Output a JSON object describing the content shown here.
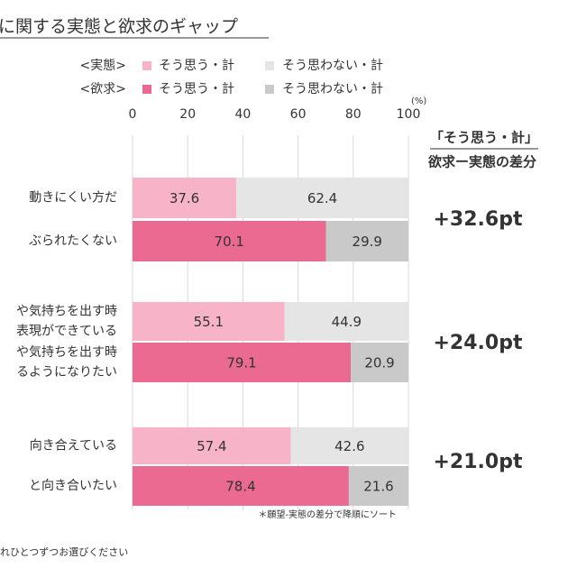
{
  "chart_data": {
    "type": "bar",
    "stacked": true,
    "orientation": "horizontal",
    "title": "に関する実態と欲求のギャップ",
    "unit_label": "(%)",
    "xlim": [
      0,
      100
    ],
    "xticks": [
      0,
      20,
      40,
      60,
      80,
      100
    ],
    "grid": true,
    "categories": [
      [
        "動きにくい方だ"
      ],
      [
        "ぶられたくない"
      ],
      [
        "や気持ちを出す時",
        "表現ができている"
      ],
      [
        "や気持ちを出す時",
        "るようになりたい"
      ],
      [
        "向き合えている"
      ],
      [
        "と向き合いたい"
      ]
    ],
    "groups": [
      {
        "name": "<実態>",
        "series": [
          {
            "name": "そう思う・計",
            "color": "#f7b3c7",
            "values": [
              37.6,
              55.1,
              57.4
            ]
          },
          {
            "name": "そう思わない・計",
            "color": "#e5e5e5",
            "values": [
              62.4,
              44.9,
              42.6
            ]
          }
        ]
      },
      {
        "name": "<欲求>",
        "series": [
          {
            "name": "そう思う・計",
            "color": "#eb6a92",
            "values": [
              70.1,
              79.1,
              78.4
            ]
          },
          {
            "name": "そう思わない・計",
            "color": "#c9c9c9",
            "values": [
              29.9,
              20.9,
              21.6
            ]
          }
        ]
      }
    ],
    "difference": {
      "title": [
        "「そう思う・計」",
        "欲求ー実態の差分"
      ],
      "values": [
        32.6,
        24.0,
        21.0
      ],
      "value_labels": [
        "+32.6pt",
        "+24.0pt",
        "+21.0pt"
      ]
    },
    "note": "＊願望-実態の差分で降順にソート",
    "footer": "れひとつずつお選びください"
  }
}
